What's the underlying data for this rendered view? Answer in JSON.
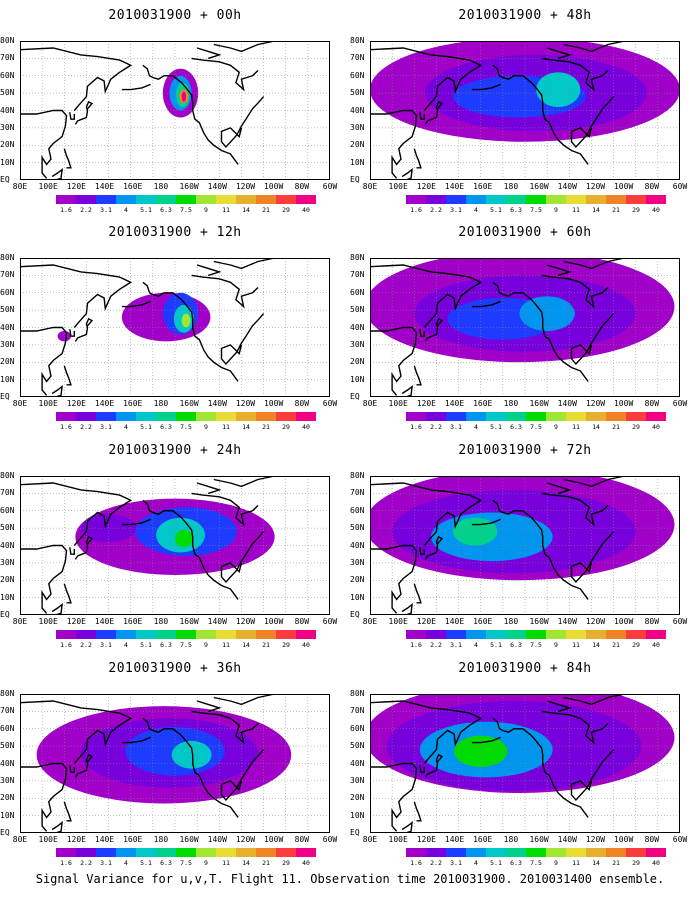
{
  "caption": "Signal Variance for u,v,T. Flight 11. Observation time 2010031900. 2010031400 ensemble.",
  "lat_labels": [
    "80N",
    "70N",
    "60N",
    "50N",
    "40N",
    "30N",
    "20N",
    "10N",
    "EQ"
  ],
  "lon_labels": [
    "80E",
    "100E",
    "120E",
    "140E",
    "160E",
    "180",
    "160W",
    "140W",
    "120W",
    "100W",
    "80W",
    "60W"
  ],
  "colorbar": {
    "labels": [
      "1.6",
      "2.2",
      "3.1",
      "4",
      "5.1",
      "6.3",
      "7.5",
      "9",
      "11",
      "14",
      "21",
      "29",
      "40"
    ],
    "colors": [
      "#a000c8",
      "#7800dc",
      "#1e3cff",
      "#0096f0",
      "#00c8c8",
      "#00d28c",
      "#00dc00",
      "#a0e632",
      "#e6dc32",
      "#e6af2d",
      "#f08228",
      "#fa3c3c",
      "#f00082"
    ]
  },
  "panels": [
    {
      "title": "2010031900 + 00h",
      "lead": "00h"
    },
    {
      "title": "2010031900 + 48h",
      "lead": "48h"
    },
    {
      "title": "2010031900 + 12h",
      "lead": "12h"
    },
    {
      "title": "2010031900 + 60h",
      "lead": "60h"
    },
    {
      "title": "2010031900 + 24h",
      "lead": "24h"
    },
    {
      "title": "2010031900 + 72h",
      "lead": "72h"
    },
    {
      "title": "2010031900 + 36h",
      "lead": "36h"
    },
    {
      "title": "2010031900 + 84h",
      "lead": "84h"
    }
  ]
}
